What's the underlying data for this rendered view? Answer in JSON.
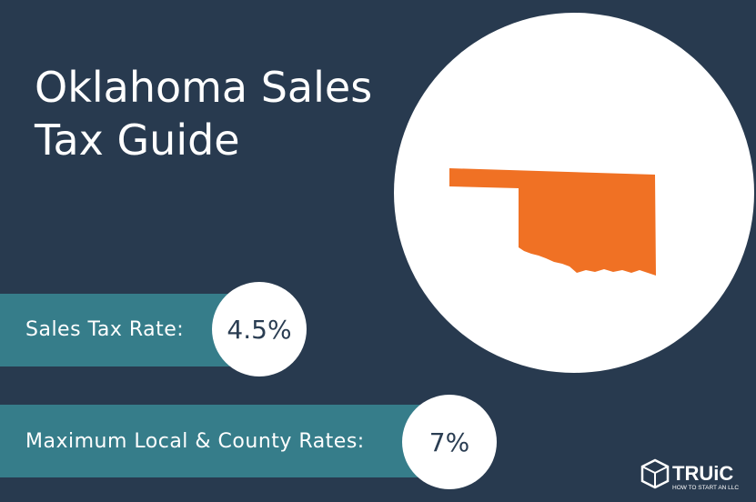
{
  "header": {
    "title_lines": [
      "Oklahoma Sales",
      "Tax Guide"
    ]
  },
  "rates": [
    {
      "label": "Sales Tax Rate:",
      "value": "4.5%"
    },
    {
      "label": "Maximum Local & County Rates:",
      "value": "7%"
    }
  ],
  "logo": {
    "name": "TRUiC",
    "tagline": "HOW TO START AN LLC"
  }
}
